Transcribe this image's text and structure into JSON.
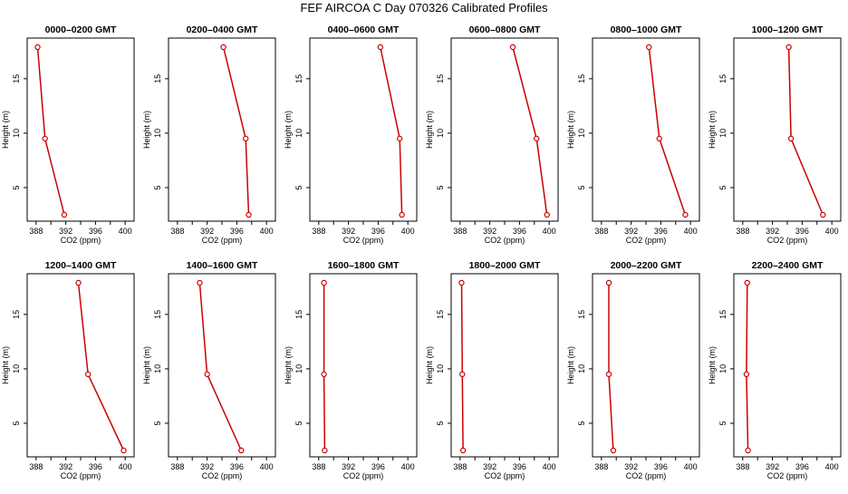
{
  "figure": {
    "title": "FEF AIRCOA C  Day 070326  Calibrated Profiles",
    "line_color": "#cc0000",
    "marker_color": "#cc0000"
  },
  "chart_data": [
    {
      "type": "line",
      "title": "0000–0200 GMT",
      "xlabel": "CO2 (ppm)",
      "ylabel": "Height (m)",
      "xlim": [
        388,
        400
      ],
      "ylim": [
        2.5,
        17.9
      ],
      "xticks": [
        "388",
        "392",
        "396",
        "400"
      ],
      "yticks": [
        "5",
        "10",
        "15"
      ],
      "series": [
        {
          "x": [
            388.2,
            389.2,
            391.8
          ],
          "y": [
            17.9,
            9.5,
            2.5
          ]
        }
      ]
    },
    {
      "type": "line",
      "title": "0200–0400 GMT",
      "xlabel": "CO2 (ppm)",
      "ylabel": "Height (m)",
      "xlim": [
        388,
        400
      ],
      "ylim": [
        2.5,
        17.9
      ],
      "xticks": [
        "388",
        "392",
        "396",
        "400"
      ],
      "yticks": [
        "5",
        "10",
        "15"
      ],
      "series": [
        {
          "x": [
            394.2,
            397.2,
            397.6
          ],
          "y": [
            17.9,
            9.5,
            2.5
          ]
        }
      ]
    },
    {
      "type": "line",
      "title": "0400–0600 GMT",
      "xlabel": "CO2 (ppm)",
      "ylabel": "Height (m)",
      "xlim": [
        388,
        400
      ],
      "ylim": [
        2.5,
        17.9
      ],
      "xticks": [
        "388",
        "392",
        "396",
        "400"
      ],
      "yticks": [
        "5",
        "10",
        "15"
      ],
      "series": [
        {
          "x": [
            396.3,
            398.9,
            399.2
          ],
          "y": [
            17.9,
            9.5,
            2.5
          ]
        }
      ]
    },
    {
      "type": "line",
      "title": "0600–0800 GMT",
      "xlabel": "CO2 (ppm)",
      "ylabel": "Height (m)",
      "xlim": [
        388,
        400
      ],
      "ylim": [
        2.5,
        17.9
      ],
      "xticks": [
        "388",
        "392",
        "396",
        "400"
      ],
      "yticks": [
        "5",
        "10",
        "15"
      ],
      "series": [
        {
          "x": [
            395.1,
            398.3,
            399.7
          ],
          "y": [
            17.9,
            9.5,
            2.5
          ]
        }
      ]
    },
    {
      "type": "line",
      "title": "0800–1000 GMT",
      "xlabel": "CO2 (ppm)",
      "ylabel": "Height (m)",
      "xlim": [
        388,
        400
      ],
      "ylim": [
        2.5,
        17.9
      ],
      "xticks": [
        "388",
        "392",
        "396",
        "400"
      ],
      "yticks": [
        "5",
        "10",
        "15"
      ],
      "series": [
        {
          "x": [
            394.4,
            395.8,
            399.3
          ],
          "y": [
            17.9,
            9.5,
            2.5
          ]
        }
      ]
    },
    {
      "type": "line",
      "title": "1000–1200 GMT",
      "xlabel": "CO2 (ppm)",
      "ylabel": "Height (m)",
      "xlim": [
        388,
        400
      ],
      "ylim": [
        2.5,
        17.9
      ],
      "xticks": [
        "388",
        "392",
        "396",
        "400"
      ],
      "yticks": [
        "5",
        "10",
        "15"
      ],
      "series": [
        {
          "x": [
            394.2,
            394.5,
            398.8
          ],
          "y": [
            17.9,
            9.5,
            2.5
          ]
        }
      ]
    },
    {
      "type": "line",
      "title": "1200–1400 GMT",
      "xlabel": "CO2 (ppm)",
      "ylabel": "Height (m)",
      "xlim": [
        388,
        400
      ],
      "ylim": [
        2.5,
        17.9
      ],
      "xticks": [
        "388",
        "392",
        "396",
        "400"
      ],
      "yticks": [
        "5",
        "10",
        "15"
      ],
      "series": [
        {
          "x": [
            393.7,
            395.0,
            399.8
          ],
          "y": [
            17.9,
            9.5,
            2.5
          ]
        }
      ]
    },
    {
      "type": "line",
      "title": "1400–1600 GMT",
      "xlabel": "CO2 (ppm)",
      "ylabel": "Height (m)",
      "xlim": [
        388,
        400
      ],
      "ylim": [
        2.5,
        17.9
      ],
      "xticks": [
        "388",
        "392",
        "396",
        "400"
      ],
      "yticks": [
        "5",
        "10",
        "15"
      ],
      "series": [
        {
          "x": [
            391.0,
            392.0,
            396.6
          ],
          "y": [
            17.9,
            9.5,
            2.5
          ]
        }
      ]
    },
    {
      "type": "line",
      "title": "1600–1800 GMT",
      "xlabel": "CO2 (ppm)",
      "ylabel": "Height (m)",
      "xlim": [
        388,
        400
      ],
      "ylim": [
        2.5,
        17.9
      ],
      "xticks": [
        "388",
        "392",
        "396",
        "400"
      ],
      "yticks": [
        "5",
        "10",
        "15"
      ],
      "series": [
        {
          "x": [
            388.7,
            388.7,
            388.8
          ],
          "y": [
            17.9,
            9.5,
            2.5
          ]
        }
      ]
    },
    {
      "type": "line",
      "title": "1800–2000 GMT",
      "xlabel": "CO2 (ppm)",
      "ylabel": "Height (m)",
      "xlim": [
        388,
        400
      ],
      "ylim": [
        2.5,
        17.9
      ],
      "xticks": [
        "388",
        "392",
        "396",
        "400"
      ],
      "yticks": [
        "5",
        "10",
        "15"
      ],
      "series": [
        {
          "x": [
            388.2,
            388.3,
            388.4
          ],
          "y": [
            17.9,
            9.5,
            2.5
          ]
        }
      ]
    },
    {
      "type": "line",
      "title": "2000–2200 GMT",
      "xlabel": "CO2 (ppm)",
      "ylabel": "Height (m)",
      "xlim": [
        388,
        400
      ],
      "ylim": [
        2.5,
        17.9
      ],
      "xticks": [
        "388",
        "392",
        "396",
        "400"
      ],
      "yticks": [
        "5",
        "10",
        "15"
      ],
      "series": [
        {
          "x": [
            389.0,
            389.0,
            389.6
          ],
          "y": [
            17.9,
            9.5,
            2.5
          ]
        }
      ]
    },
    {
      "type": "line",
      "title": "2200–2400 GMT",
      "xlabel": "CO2 (ppm)",
      "ylabel": "Height (m)",
      "xlim": [
        388,
        400
      ],
      "ylim": [
        2.5,
        17.9
      ],
      "xticks": [
        "388",
        "392",
        "396",
        "400"
      ],
      "yticks": [
        "5",
        "10",
        "15"
      ],
      "series": [
        {
          "x": [
            388.6,
            388.5,
            388.7
          ],
          "y": [
            17.9,
            9.5,
            2.5
          ]
        }
      ]
    }
  ]
}
